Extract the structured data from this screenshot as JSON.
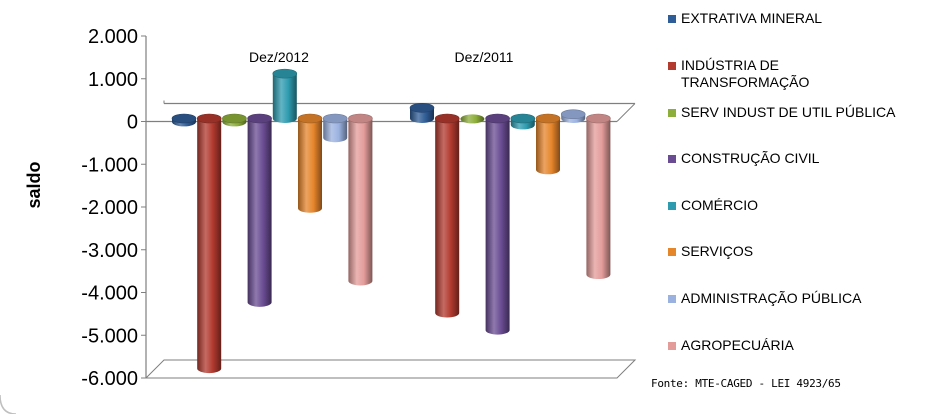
{
  "chart_data": {
    "type": "bar",
    "title": "",
    "xlabel": "",
    "ylabel": "saldo",
    "ylim": [
      -6000,
      2000
    ],
    "yticks": [
      "2.000",
      "1.000",
      "0",
      "-1.000",
      "-2.000",
      "-3.000",
      "-4.000",
      "-5.000",
      "-6.000"
    ],
    "categories": [
      "Dez/2012",
      "Dez/2011"
    ],
    "series": [
      {
        "name": "EXTRATIVA MINERAL",
        "color": "#2F5D97",
        "values": [
          -80,
          250
        ]
      },
      {
        "name": "INDÚSTRIA DE\nTRANSFORMAÇÃO",
        "color": "#B23A2F",
        "values": [
          -5850,
          -4550
        ]
      },
      {
        "name": "SERV INDUST DE UTIL PÚBLICA",
        "color": "#8DAE3A",
        "values": [
          -80,
          -20
        ]
      },
      {
        "name": "CONSTRUÇÃO CIVIL",
        "color": "#6A4C93",
        "values": [
          -4300,
          -4950
        ]
      },
      {
        "name": "COMÉRCIO",
        "color": "#2E9BAF",
        "values": [
          1050,
          -150
        ]
      },
      {
        "name": "SERVIÇOS",
        "color": "#E6862B",
        "values": [
          -2100,
          -1200
        ]
      },
      {
        "name": "ADMINISTRAÇÃO PÚBLICA",
        "color": "#9BB2E0",
        "values": [
          -450,
          100
        ]
      },
      {
        "name": "AGROPECUÁRIA",
        "color": "#E39C9A",
        "values": [
          -3800,
          -3650
        ]
      }
    ],
    "legend_position": "right",
    "grid": false
  },
  "source_note": "Fonte: MTE-CAGED - LEI 4923/65"
}
